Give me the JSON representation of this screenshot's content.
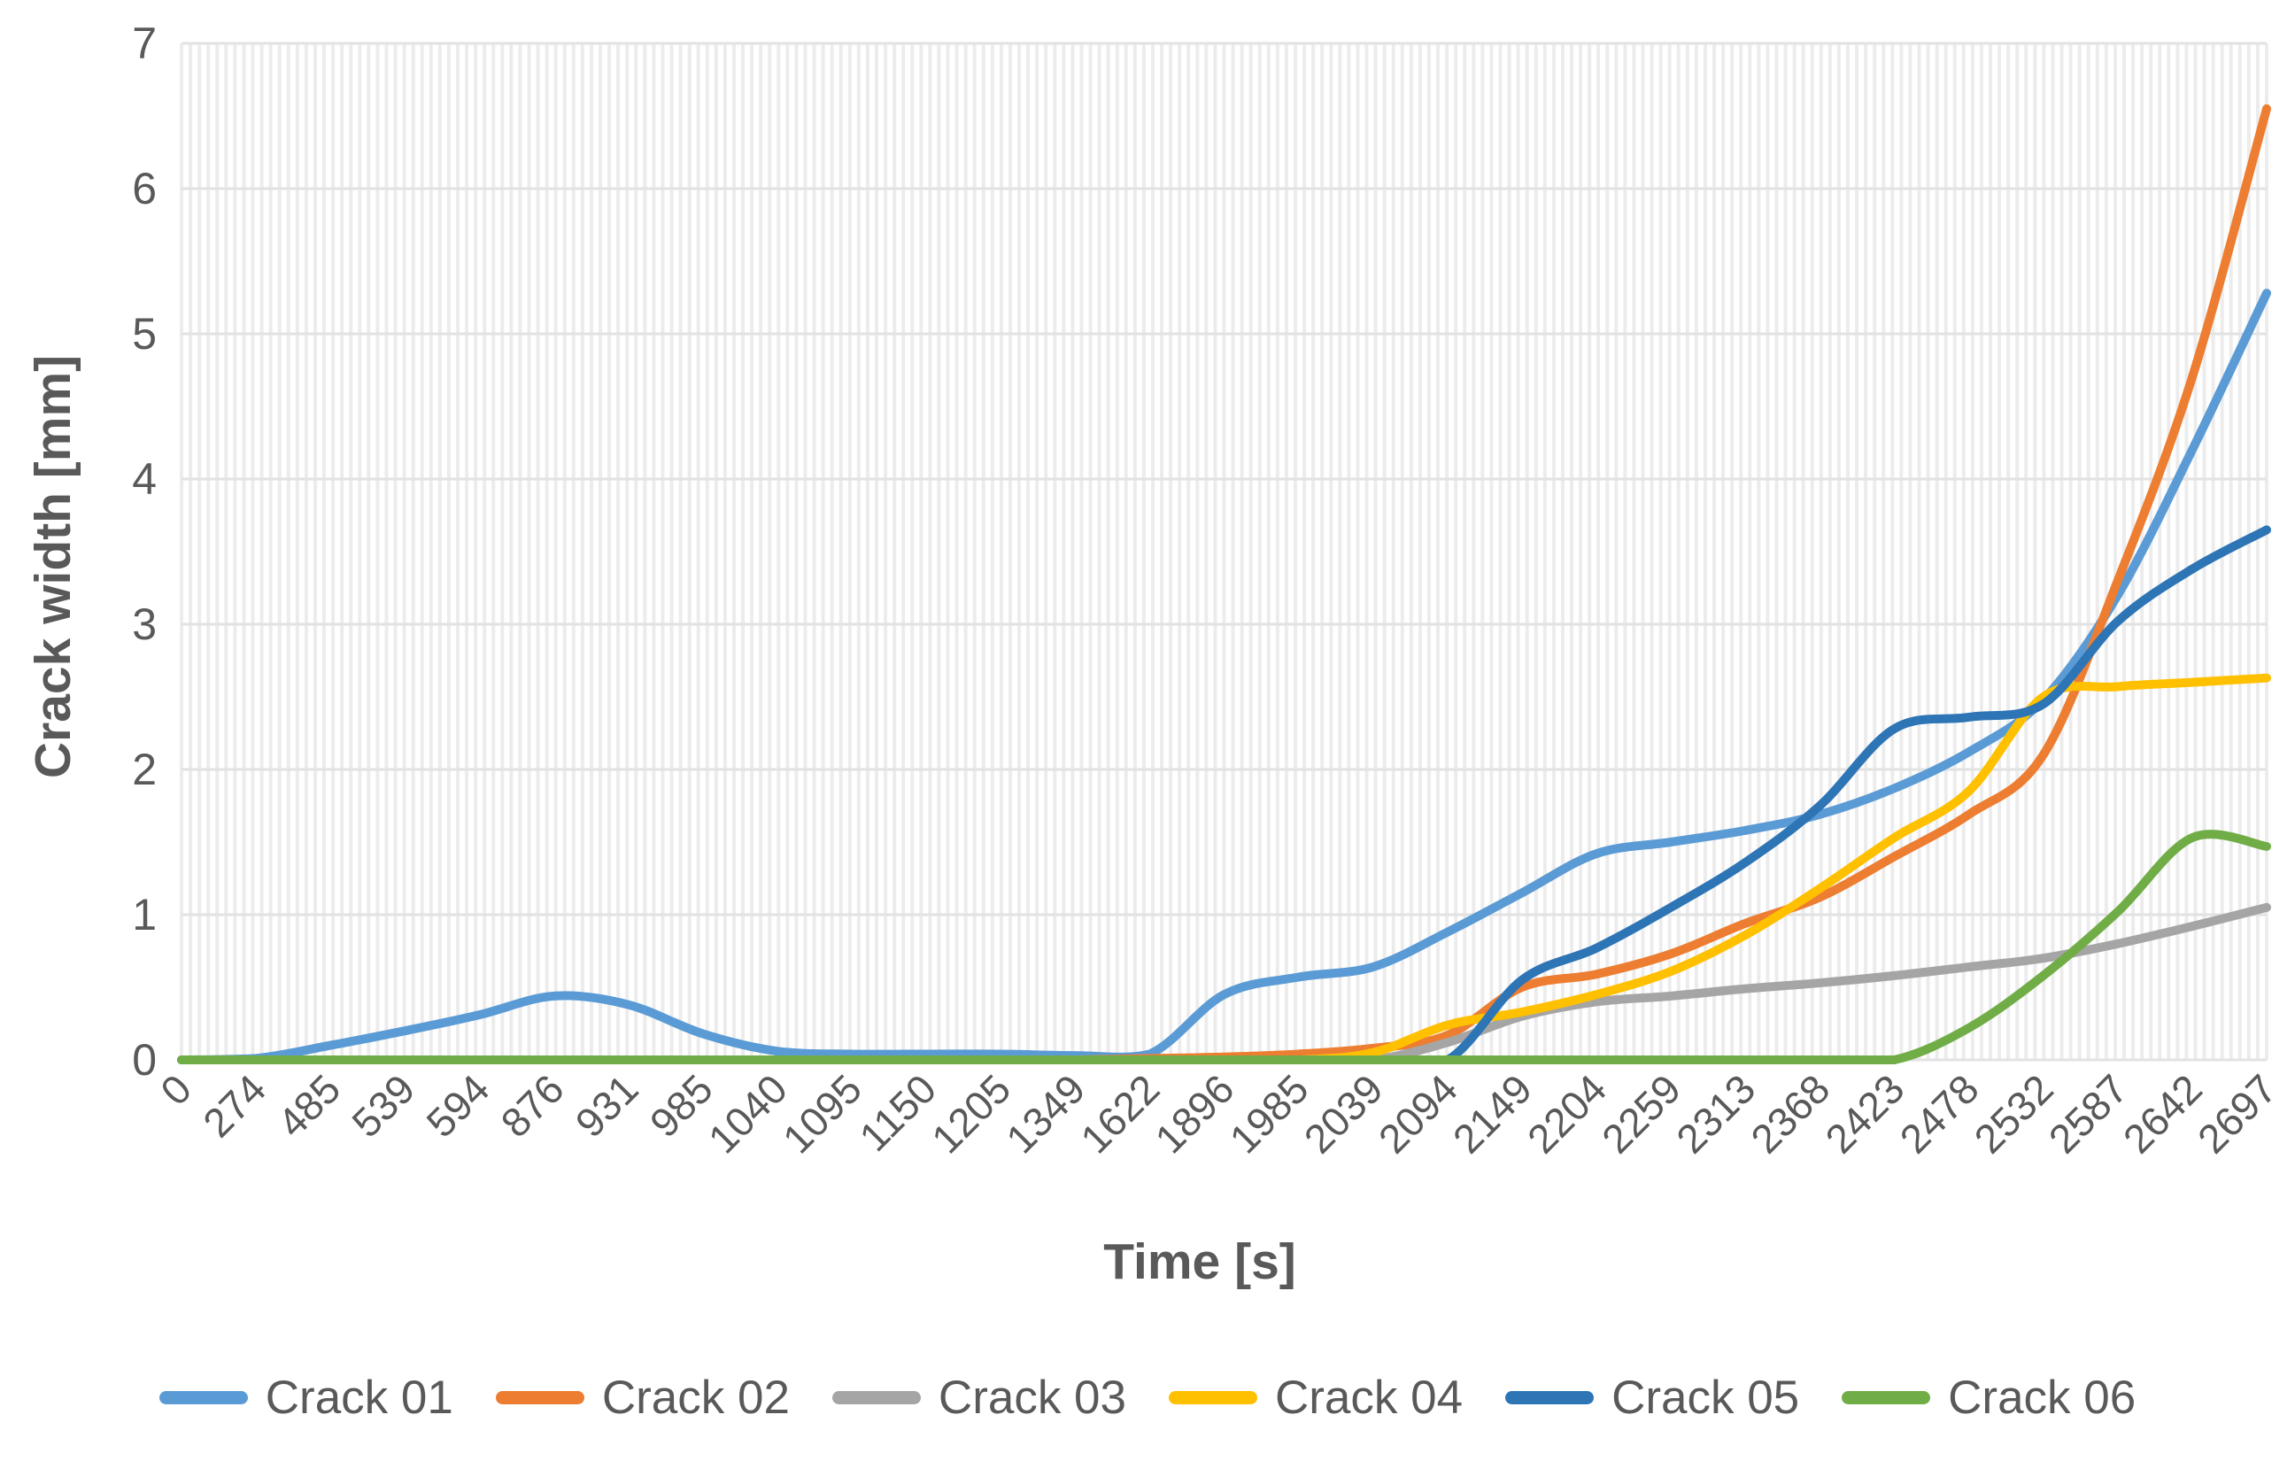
{
  "chart_data": {
    "type": "line",
    "title": "",
    "xlabel": "Time [s]",
    "ylabel": "Crack width [mm]",
    "ylim": [
      0,
      7
    ],
    "y_ticks": [
      0,
      1,
      2,
      3,
      4,
      5,
      6,
      7
    ],
    "grid": {
      "horizontal_major": true,
      "vertical_minor": true,
      "vertical_minor_count": 235
    },
    "legend_position": "bottom",
    "line_style": "smooth",
    "categories": [
      "0",
      "274",
      "485",
      "539",
      "594",
      "876",
      "931",
      "985",
      "1040",
      "1095",
      "1150",
      "1205",
      "1349",
      "1622",
      "1896",
      "1985",
      "2039",
      "2094",
      "2149",
      "2204",
      "2259",
      "2313",
      "2368",
      "2423",
      "2478",
      "2532",
      "2587",
      "2642",
      "2697"
    ],
    "series": [
      {
        "name": "Crack 01",
        "color": "#5B9BD5",
        "values": [
          0,
          0.01,
          0.1,
          0.2,
          0.31,
          0.44,
          0.38,
          0.18,
          0.06,
          0.04,
          0.04,
          0.04,
          0.03,
          0.04,
          0.45,
          0.57,
          0.64,
          0.88,
          1.15,
          1.42,
          1.5,
          1.58,
          1.69,
          1.87,
          2.12,
          2.48,
          3.2,
          4.2,
          5.28
        ]
      },
      {
        "name": "Crack 02",
        "color": "#ED7D31",
        "values": [
          0,
          0,
          0,
          0,
          0,
          0,
          0,
          0,
          0,
          0,
          0,
          0,
          0,
          0.01,
          0.02,
          0.04,
          0.08,
          0.17,
          0.5,
          0.59,
          0.73,
          0.94,
          1.12,
          1.4,
          1.69,
          2.1,
          3.3,
          4.7,
          6.55
        ]
      },
      {
        "name": "Crack 03",
        "color": "#A5A5A5",
        "values": [
          0,
          0,
          0,
          0,
          0,
          0,
          0,
          0,
          0,
          0,
          0,
          0,
          0,
          0,
          0,
          0,
          0,
          0.12,
          0.3,
          0.4,
          0.44,
          0.49,
          0.53,
          0.58,
          0.64,
          0.7,
          0.8,
          0.92,
          1.05
        ]
      },
      {
        "name": "Crack 04",
        "color": "#FFC000",
        "values": [
          0,
          0,
          0,
          0,
          0,
          0,
          0,
          0,
          0,
          0,
          0,
          0,
          0,
          0,
          0,
          0,
          0.05,
          0.24,
          0.33,
          0.45,
          0.61,
          0.86,
          1.18,
          1.53,
          1.85,
          2.5,
          2.57,
          2.6,
          2.63
        ]
      },
      {
        "name": "Crack 05",
        "color": "#2E75B6",
        "values": [
          0,
          0,
          0,
          0,
          0,
          0,
          0,
          0,
          0,
          0,
          0,
          0,
          0,
          0,
          0,
          0,
          0,
          0,
          0.55,
          0.77,
          1.05,
          1.36,
          1.75,
          2.28,
          2.36,
          2.45,
          3.02,
          3.38,
          3.65
        ]
      },
      {
        "name": "Crack 06",
        "color": "#70AD47",
        "values": [
          0,
          0,
          0,
          0,
          0,
          0,
          0,
          0,
          0,
          0,
          0,
          0,
          0,
          0,
          0,
          0,
          0,
          0,
          0,
          0,
          0,
          0,
          0,
          0,
          0.22,
          0.58,
          1.02,
          1.53,
          1.47
        ]
      }
    ]
  },
  "colors": {
    "text": "#595959",
    "major_gridline": "#E2E2E2",
    "minor_gridline": "#ECECEC",
    "background": "#FFFFFF"
  }
}
